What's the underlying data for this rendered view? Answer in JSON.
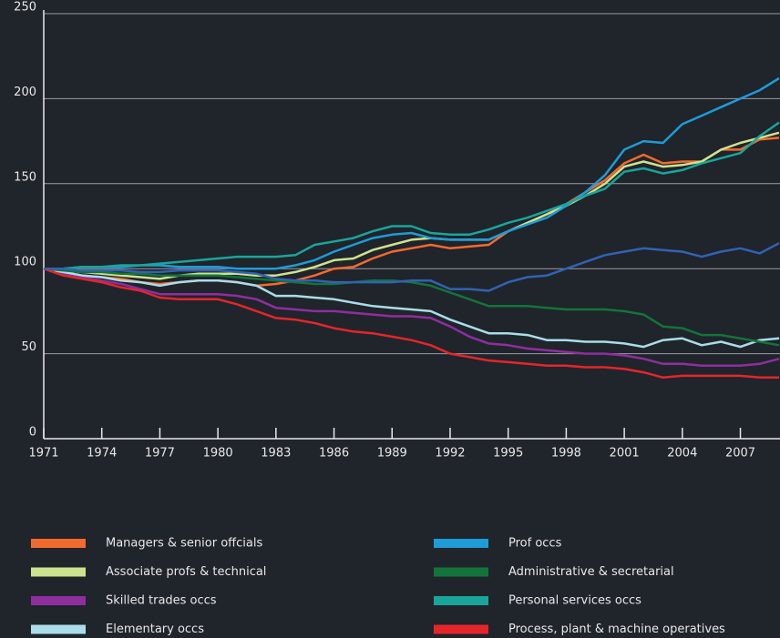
{
  "chart_data": {
    "type": "line",
    "x": [
      1971,
      1972,
      1973,
      1974,
      1975,
      1976,
      1977,
      1978,
      1979,
      1980,
      1981,
      1982,
      1983,
      1984,
      1985,
      1986,
      1987,
      1988,
      1989,
      1990,
      1991,
      1992,
      1993,
      1994,
      1995,
      1996,
      1997,
      1998,
      1999,
      2000,
      2001,
      2002,
      2003,
      2004,
      2005,
      2006,
      2007,
      2008,
      2009
    ],
    "xlim": [
      1971,
      2009
    ],
    "xticks": [
      1971,
      1974,
      1977,
      1980,
      1983,
      1986,
      1989,
      1992,
      1995,
      1998,
      2001,
      2004,
      2007
    ],
    "ylim": [
      0,
      250
    ],
    "yticks": [
      0,
      50,
      100,
      150,
      200,
      250
    ],
    "grid": true,
    "series": [
      {
        "name": "Managers & senior offcials",
        "color": "#f26b2e",
        "values": [
          100,
          98,
          96,
          95,
          94,
          92,
          91,
          92,
          93,
          93,
          92,
          90,
          91,
          93,
          96,
          100,
          101,
          106,
          110,
          112,
          114,
          112,
          113,
          114,
          122,
          127,
          132,
          138,
          145,
          152,
          162,
          167,
          162,
          163,
          163,
          170,
          170,
          176,
          177
        ]
      },
      {
        "name": "Associate profs & technical",
        "color": "#cde38f",
        "values": [
          100,
          99,
          98,
          97,
          96,
          95,
          94,
          96,
          97,
          97,
          97,
          96,
          96,
          98,
          101,
          105,
          106,
          111,
          114,
          117,
          118,
          117,
          117,
          117,
          122,
          127,
          132,
          137,
          143,
          150,
          160,
          163,
          160,
          161,
          163,
          170,
          174,
          177,
          180
        ]
      },
      {
        "name": "Skilled trades occs",
        "color": "#8f2e9e",
        "values": [
          100,
          97,
          95,
          93,
          91,
          88,
          85,
          85,
          85,
          85,
          84,
          82,
          77,
          76,
          75,
          75,
          74,
          73,
          72,
          72,
          71,
          66,
          60,
          56,
          55,
          53,
          52,
          51,
          50,
          50,
          49,
          47,
          44,
          44,
          43,
          43,
          43,
          44,
          47
        ]
      },
      {
        "name": "Elementary occs",
        "color": "#a9dde8",
        "values": [
          100,
          98,
          96,
          95,
          93,
          92,
          90,
          92,
          93,
          93,
          92,
          90,
          84,
          84,
          83,
          82,
          80,
          78,
          77,
          76,
          75,
          70,
          66,
          62,
          62,
          61,
          58,
          58,
          57,
          57,
          56,
          54,
          58,
          59,
          55,
          57,
          54,
          58,
          59
        ]
      },
      {
        "name": "Prof occs",
        "color": "#1d9cd8",
        "values": [
          100,
          100,
          101,
          101,
          101,
          102,
          102,
          101,
          101,
          101,
          100,
          100,
          100,
          102,
          105,
          110,
          114,
          118,
          120,
          121,
          118,
          117,
          117,
          117,
          122,
          126,
          130,
          137,
          145,
          155,
          170,
          175,
          174,
          185,
          190,
          195,
          200,
          205,
          212
        ]
      },
      {
        "name": "Administrative & secretarial",
        "color": "#13743b",
        "values": [
          100,
          99,
          98,
          98,
          97,
          97,
          96,
          96,
          96,
          96,
          95,
          94,
          93,
          92,
          91,
          91,
          92,
          93,
          93,
          92,
          90,
          86,
          82,
          78,
          78,
          78,
          77,
          76,
          76,
          76,
          75,
          73,
          66,
          65,
          61,
          61,
          59,
          57,
          55
        ]
      },
      {
        "name": "Personal services occs",
        "color": "#1aa59b",
        "values": [
          100,
          100,
          101,
          101,
          102,
          102,
          103,
          104,
          105,
          106,
          107,
          107,
          107,
          108,
          114,
          116,
          118,
          122,
          125,
          125,
          121,
          120,
          120,
          123,
          127,
          130,
          134,
          138,
          143,
          147,
          157,
          159,
          156,
          158,
          162,
          165,
          168,
          178,
          186
        ]
      },
      {
        "name": "Process, plant & machine operatives",
        "color": "#e4262b",
        "values": [
          100,
          96,
          94,
          92,
          89,
          87,
          83,
          82,
          82,
          82,
          79,
          75,
          71,
          70,
          68,
          65,
          63,
          62,
          60,
          58,
          55,
          50,
          48,
          46,
          45,
          44,
          43,
          43,
          42,
          42,
          41,
          39,
          36,
          37,
          37,
          37,
          37,
          36,
          36
        ]
      },
      {
        "color": "#3063b3",
        "values": [
          100,
          100,
          99,
          99,
          99,
          98,
          98,
          99,
          99,
          99,
          98,
          97,
          94,
          93,
          93,
          92,
          92,
          92,
          92,
          93,
          93,
          88,
          88,
          87,
          92,
          95,
          96,
          100,
          104,
          108,
          110,
          112,
          111,
          110,
          107,
          110,
          112,
          109,
          115
        ]
      }
    ]
  }
}
